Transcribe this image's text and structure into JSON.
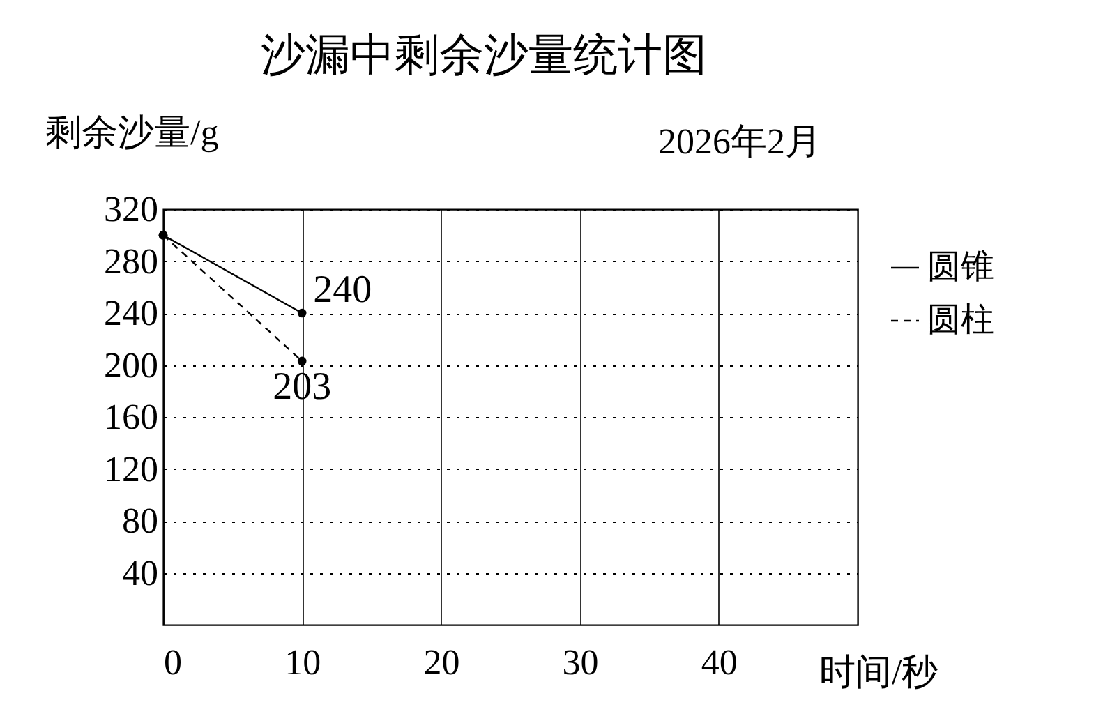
{
  "chart_data": {
    "type": "line",
    "title": "沙漏中剩余沙量统计图",
    "xlabel": "时间/秒",
    "ylabel": "剩余沙量/g",
    "annotations": [
      "2026年2月"
    ],
    "x": [
      0,
      10
    ],
    "xlim": [
      0,
      50
    ],
    "xticks": [
      0,
      10,
      20,
      30,
      40
    ],
    "ylim": [
      0,
      320
    ],
    "yticks": [
      40,
      80,
      120,
      160,
      200,
      240,
      280,
      320
    ],
    "grid": true,
    "legend": "right",
    "marker": "circle",
    "series": [
      {
        "name": "圆锥",
        "color": "#000000",
        "line_style": "solid",
        "values": [
          300,
          240
        ],
        "value_labels": [
          null,
          "240"
        ]
      },
      {
        "name": "圆柱",
        "color": "#000000",
        "line_style": "dashed",
        "values": [
          300,
          203
        ],
        "value_labels": [
          null,
          "203"
        ]
      }
    ]
  }
}
